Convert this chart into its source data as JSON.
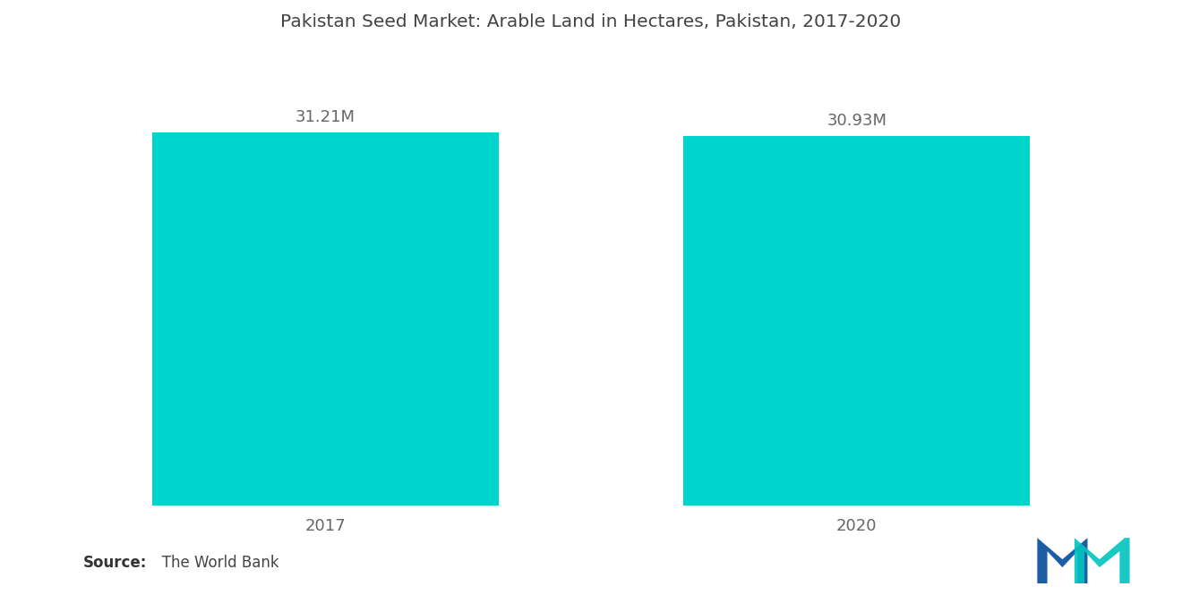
{
  "title": "Pakistan Seed Market: Arable Land in Hectares, Pakistan, 2017-2020",
  "categories": [
    "2017",
    "2020"
  ],
  "values": [
    31.21,
    30.93
  ],
  "labels": [
    "31.21M",
    "30.93M"
  ],
  "bar_color": "#00D4CC",
  "background_color": "#ffffff",
  "title_fontsize": 14.5,
  "label_fontsize": 13,
  "tick_fontsize": 13,
  "source_bold": "Source:",
  "source_normal": "   The World Bank",
  "source_fontsize": 12,
  "ylim": [
    0,
    38
  ],
  "bar_width": 0.3,
  "x_positions": [
    0.27,
    0.73
  ],
  "xlim": [
    0,
    1
  ]
}
